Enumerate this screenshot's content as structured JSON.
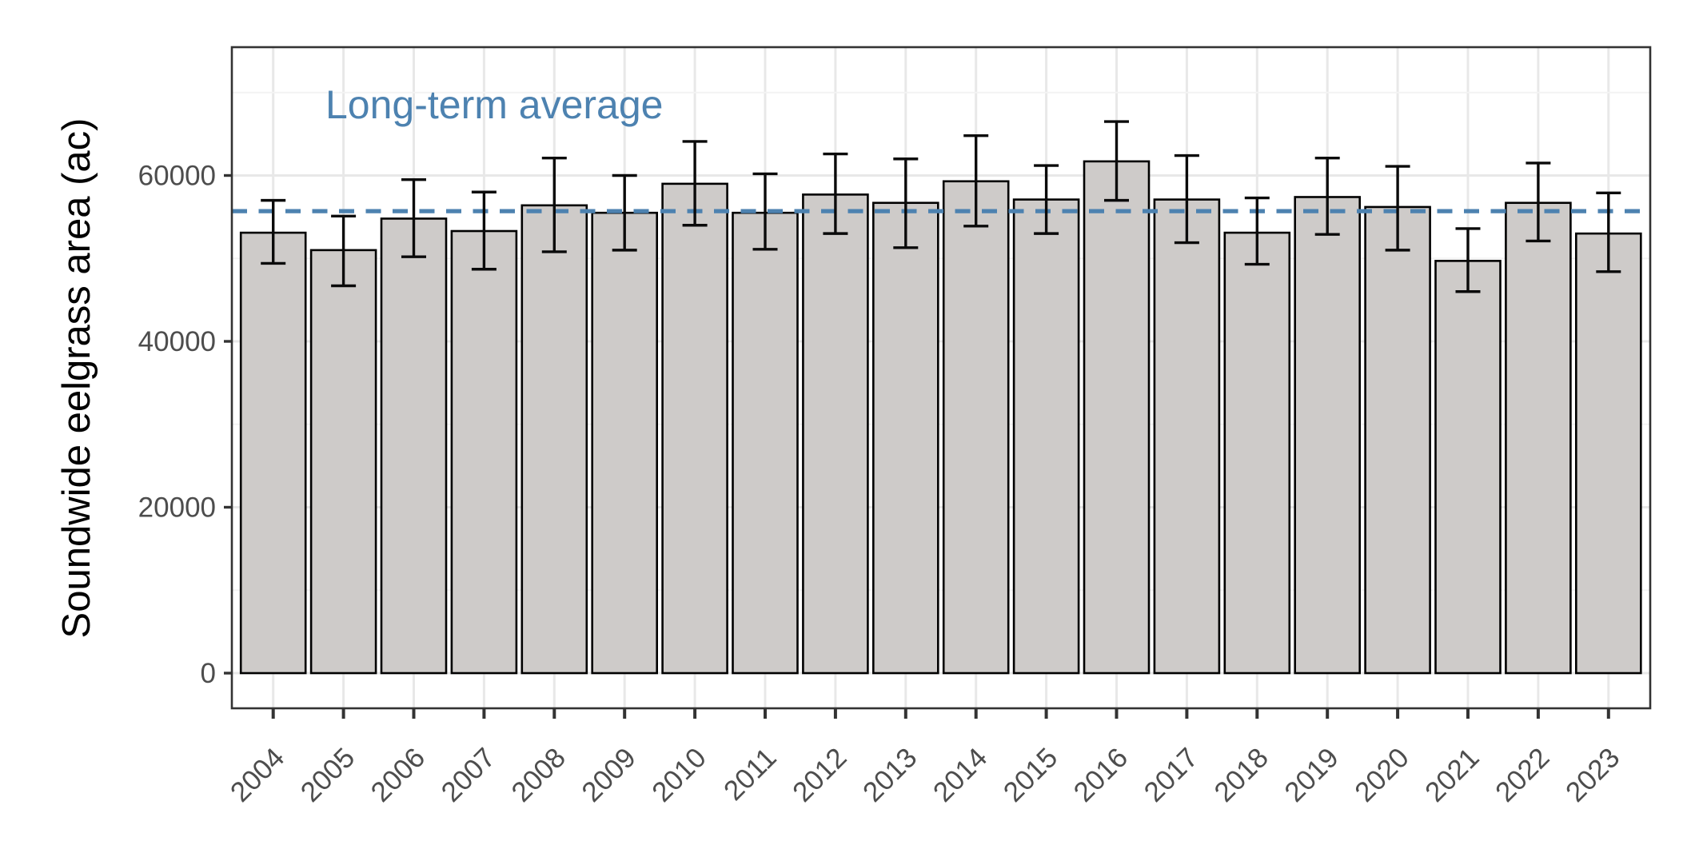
{
  "chart_data": {
    "type": "bar",
    "title": "",
    "xlabel": "",
    "ylabel": "Soundwide eelgrass area (ac)",
    "categories": [
      "2004",
      "2005",
      "2006",
      "2007",
      "2008",
      "2009",
      "2010",
      "2011",
      "2012",
      "2013",
      "2014",
      "2015",
      "2016",
      "2017",
      "2018",
      "2019",
      "2020",
      "2021",
      "2022",
      "2023"
    ],
    "values": [
      53100,
      51000,
      54800,
      53300,
      56400,
      55500,
      59000,
      55500,
      57700,
      56700,
      59300,
      57100,
      61700,
      57100,
      53100,
      57400,
      56200,
      49700,
      56700,
      53000
    ],
    "error_high": [
      57000,
      55100,
      59500,
      58000,
      62100,
      60000,
      64100,
      60200,
      62600,
      62000,
      64800,
      61200,
      66500,
      62400,
      57300,
      62100,
      61100,
      53600,
      61500,
      57900
    ],
    "error_low": [
      49400,
      46700,
      50200,
      48700,
      50800,
      51000,
      54000,
      51100,
      53000,
      51300,
      53900,
      53000,
      57000,
      51900,
      49300,
      52900,
      51000,
      46000,
      52100,
      48400
    ],
    "reference_line": {
      "label": "Long-term average",
      "value": 55700
    },
    "ylim": [
      0,
      75500
    ],
    "yticks": [
      {
        "value": 0,
        "label": "0"
      },
      {
        "value": 20000,
        "label": "20000"
      },
      {
        "value": 40000,
        "label": "40000"
      },
      {
        "value": 60000,
        "label": "60000"
      }
    ],
    "yminor": [
      10000,
      30000,
      50000,
      70000
    ],
    "grid": true,
    "legend": "none",
    "colors": {
      "bar_fill": "#CECBC9",
      "bar_stroke": "#000000",
      "error": "#0A0A0A",
      "accent": "#4D82B0",
      "grid_major": "#E8E8E8",
      "grid_minor": "#F3F3F3",
      "axis_text": "#4D4D4D",
      "axis_title": "#000000",
      "panel_border": "#333333",
      "background": "#FFFFFF"
    }
  }
}
